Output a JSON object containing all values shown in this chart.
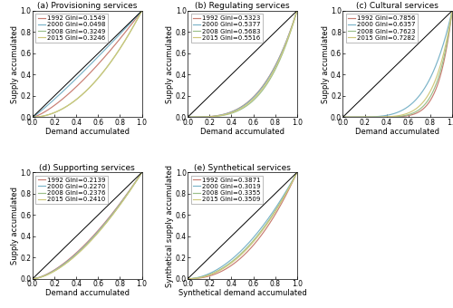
{
  "panels": [
    {
      "label": "(a) Provisioning services",
      "xlabel": "Demand accumulated",
      "ylabel": "Supply accumulated",
      "years": [
        "1992",
        "2000",
        "2008",
        "2015"
      ],
      "gini": [
        0.1549,
        0.0498,
        0.3249,
        0.3246
      ],
      "colors": [
        "#c87d72",
        "#7ab3c8",
        "#9bbf8a",
        "#cfc87a"
      ],
      "curve_shape": [
        1.367,
        1.105,
        1.964,
        1.962
      ]
    },
    {
      "label": "(b) Regulating services",
      "xlabel": "Demand accumulated",
      "ylabel": "Supply accumulated",
      "years": [
        "1992",
        "2000",
        "2008",
        "2015"
      ],
      "gini": [
        0.5323,
        0.5377,
        0.5683,
        0.5516
      ],
      "colors": [
        "#c87d72",
        "#7ab3c8",
        "#9bbf8a",
        "#cfc87a"
      ],
      "curve_shape": [
        3.274,
        3.323,
        3.634,
        3.462
      ]
    },
    {
      "label": "(c) Cultural services",
      "xlabel": "Demand accumulated",
      "ylabel": "Supply accumulated",
      "years": [
        "1992",
        "2000",
        "2008",
        "2015"
      ],
      "gini": [
        0.7856,
        0.6357,
        0.7623,
        0.7282
      ],
      "colors": [
        "#c87d72",
        "#7ab3c8",
        "#9bbf8a",
        "#cfc87a"
      ],
      "curve_shape": [
        8.33,
        4.49,
        7.41,
        6.35
      ]
    },
    {
      "label": "(d) Supporting services",
      "xlabel": "Demand accumulated",
      "ylabel": "Supply accumulated",
      "years": [
        "1992",
        "2000",
        "2008",
        "2015"
      ],
      "gini": [
        0.2139,
        0.227,
        0.2376,
        0.241
      ],
      "colors": [
        "#c87d72",
        "#7ab3c8",
        "#9bbf8a",
        "#cfc87a"
      ],
      "curve_shape": [
        1.544,
        1.587,
        1.623,
        1.635
      ]
    },
    {
      "label": "(e) Synthetical services",
      "xlabel": "Synthetical demand accumulated",
      "ylabel": "Synthetical supply accumulated",
      "years": [
        "1992",
        "2000",
        "2008",
        "2015"
      ],
      "gini": [
        0.3871,
        0.3019,
        0.3355,
        0.3509
      ],
      "colors": [
        "#c87d72",
        "#7ab3c8",
        "#9bbf8a",
        "#cfc87a"
      ],
      "curve_shape": [
        2.264,
        1.865,
        2.01,
        2.081
      ]
    }
  ],
  "diagonal_color": "black",
  "legend_fontsize": 5.0,
  "tick_fontsize": 5.5,
  "label_fontsize": 6.0,
  "title_fontsize": 6.5
}
